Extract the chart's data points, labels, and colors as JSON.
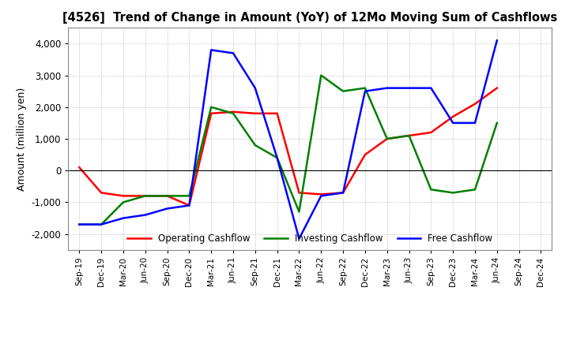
{
  "title": "[4526]  Trend of Change in Amount (YoY) of 12Mo Moving Sum of Cashflows",
  "ylabel": "Amount (million yen)",
  "ylim": [
    -2500,
    4500
  ],
  "yticks": [
    -2000,
    -1000,
    0,
    1000,
    2000,
    3000,
    4000
  ],
  "x_labels": [
    "Sep-19",
    "Dec-19",
    "Mar-20",
    "Jun-20",
    "Sep-20",
    "Dec-20",
    "Mar-21",
    "Jun-21",
    "Sep-21",
    "Dec-21",
    "Mar-22",
    "Jun-22",
    "Sep-22",
    "Dec-22",
    "Mar-23",
    "Jun-23",
    "Sep-23",
    "Dec-23",
    "Mar-24",
    "Jun-24",
    "Sep-24",
    "Dec-24"
  ],
  "operating_cashflow": [
    100,
    -700,
    -800,
    -800,
    -800,
    -1100,
    1800,
    1850,
    1800,
    1800,
    -700,
    -750,
    -700,
    500,
    1000,
    1100,
    1200,
    1700,
    2100,
    2600,
    null,
    null
  ],
  "investing_cashflow": [
    -1700,
    -1700,
    -1000,
    -800,
    -800,
    -800,
    2000,
    1800,
    800,
    400,
    -1300,
    3000,
    2500,
    2600,
    1000,
    1100,
    -600,
    -700,
    -600,
    1500,
    null,
    null
  ],
  "free_cashflow": [
    -1700,
    -1700,
    -1500,
    -1400,
    -1200,
    -1100,
    3800,
    3700,
    2600,
    400,
    -2150,
    -800,
    -700,
    2500,
    2600,
    2600,
    2600,
    1500,
    1500,
    4100,
    null,
    null
  ],
  "operating_color": "#ff0000",
  "investing_color": "#008000",
  "free_color": "#0000ff",
  "line_width": 1.8,
  "grid_color": "#b0b0b0",
  "grid_style": "dotted",
  "background_color": "#ffffff"
}
